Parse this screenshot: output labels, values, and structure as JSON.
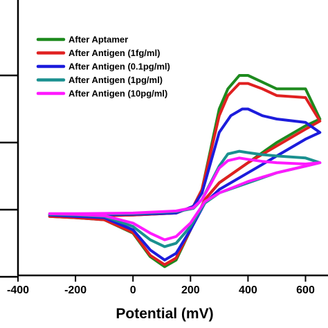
{
  "chart_data": {
    "type": "line",
    "title": "",
    "xlabel": "Potential (mV)",
    "ylabel": "",
    "xlim": [
      -400,
      650
    ],
    "x_ticks": [
      -400,
      -200,
      0,
      200,
      400,
      600
    ],
    "x_tick_labels": [
      "-400",
      "-200",
      "0",
      "200",
      "400",
      "600"
    ],
    "ylim": [
      -0.8,
      3.3
    ],
    "y_ticks": [
      -0.5,
      0.5,
      1.5,
      2.5
    ],
    "legend_position": "top-left",
    "series": [
      {
        "name": "After Aptamer",
        "color": "#1e8a1e",
        "points": [
          [
            -290,
            0.4
          ],
          [
            -200,
            0.38
          ],
          [
            -100,
            0.35
          ],
          [
            0,
            0.15
          ],
          [
            60,
            -0.2
          ],
          [
            110,
            -0.35
          ],
          [
            150,
            -0.25
          ],
          [
            200,
            0.2
          ],
          [
            250,
            0.65
          ],
          [
            300,
            0.9
          ],
          [
            400,
            1.2
          ],
          [
            500,
            1.5
          ],
          [
            600,
            1.75
          ],
          [
            650,
            1.85
          ],
          [
            650,
            1.85
          ],
          [
            600,
            2.3
          ],
          [
            500,
            2.3
          ],
          [
            450,
            2.4
          ],
          [
            400,
            2.5
          ],
          [
            370,
            2.5
          ],
          [
            330,
            2.3
          ],
          [
            300,
            2.0
          ],
          [
            270,
            1.4
          ],
          [
            240,
            0.8
          ],
          [
            210,
            0.55
          ],
          [
            150,
            0.45
          ],
          [
            0,
            0.42
          ],
          [
            -200,
            0.4
          ],
          [
            -290,
            0.4
          ]
        ]
      },
      {
        "name": "After Antigen (1fg/ml)",
        "color": "#e02020",
        "points": [
          [
            -290,
            0.4
          ],
          [
            -200,
            0.38
          ],
          [
            -100,
            0.35
          ],
          [
            0,
            0.16
          ],
          [
            60,
            -0.18
          ],
          [
            110,
            -0.32
          ],
          [
            150,
            -0.22
          ],
          [
            200,
            0.2
          ],
          [
            250,
            0.65
          ],
          [
            300,
            0.9
          ],
          [
            400,
            1.2
          ],
          [
            500,
            1.45
          ],
          [
            600,
            1.7
          ],
          [
            650,
            1.82
          ],
          [
            650,
            1.82
          ],
          [
            600,
            2.17
          ],
          [
            500,
            2.2
          ],
          [
            450,
            2.3
          ],
          [
            400,
            2.38
          ],
          [
            370,
            2.38
          ],
          [
            330,
            2.2
          ],
          [
            300,
            1.9
          ],
          [
            270,
            1.35
          ],
          [
            240,
            0.8
          ],
          [
            210,
            0.55
          ],
          [
            150,
            0.45
          ],
          [
            0,
            0.42
          ],
          [
            -200,
            0.4
          ],
          [
            -290,
            0.4
          ]
        ]
      },
      {
        "name": "After Antigen (0.1pg/ml)",
        "color": "#1c1cdc",
        "points": [
          [
            -290,
            0.42
          ],
          [
            -200,
            0.4
          ],
          [
            -100,
            0.38
          ],
          [
            0,
            0.2
          ],
          [
            60,
            -0.1
          ],
          [
            110,
            -0.25
          ],
          [
            150,
            -0.15
          ],
          [
            200,
            0.2
          ],
          [
            250,
            0.6
          ],
          [
            300,
            0.8
          ],
          [
            400,
            1.05
          ],
          [
            500,
            1.3
          ],
          [
            600,
            1.55
          ],
          [
            650,
            1.65
          ],
          [
            650,
            1.65
          ],
          [
            600,
            1.8
          ],
          [
            500,
            1.85
          ],
          [
            450,
            1.9
          ],
          [
            400,
            2.0
          ],
          [
            380,
            2.0
          ],
          [
            340,
            1.9
          ],
          [
            300,
            1.65
          ],
          [
            270,
            1.2
          ],
          [
            240,
            0.75
          ],
          [
            210,
            0.55
          ],
          [
            150,
            0.45
          ],
          [
            0,
            0.43
          ],
          [
            -200,
            0.42
          ],
          [
            -290,
            0.42
          ]
        ]
      },
      {
        "name": "After Antigen (1pg/ml)",
        "color": "#1a9090",
        "points": [
          [
            -290,
            0.43
          ],
          [
            -200,
            0.42
          ],
          [
            -100,
            0.4
          ],
          [
            0,
            0.25
          ],
          [
            60,
            0.05
          ],
          [
            110,
            -0.05
          ],
          [
            150,
            0.0
          ],
          [
            200,
            0.25
          ],
          [
            250,
            0.6
          ],
          [
            300,
            0.75
          ],
          [
            400,
            0.9
          ],
          [
            500,
            1.05
          ],
          [
            600,
            1.15
          ],
          [
            650,
            1.2
          ],
          [
            650,
            1.2
          ],
          [
            600,
            1.27
          ],
          [
            500,
            1.3
          ],
          [
            450,
            1.32
          ],
          [
            400,
            1.35
          ],
          [
            370,
            1.37
          ],
          [
            330,
            1.33
          ],
          [
            300,
            1.15
          ],
          [
            270,
            0.9
          ],
          [
            240,
            0.65
          ],
          [
            210,
            0.52
          ],
          [
            150,
            0.47
          ],
          [
            0,
            0.44
          ],
          [
            -200,
            0.43
          ],
          [
            -290,
            0.43
          ]
        ]
      },
      {
        "name": "After Antigen (10pg/ml)",
        "color": "#ff1aff",
        "points": [
          [
            -290,
            0.44
          ],
          [
            -200,
            0.43
          ],
          [
            -100,
            0.41
          ],
          [
            0,
            0.3
          ],
          [
            60,
            0.15
          ],
          [
            110,
            0.05
          ],
          [
            150,
            0.1
          ],
          [
            200,
            0.3
          ],
          [
            250,
            0.62
          ],
          [
            300,
            0.75
          ],
          [
            400,
            0.92
          ],
          [
            500,
            1.05
          ],
          [
            600,
            1.15
          ],
          [
            650,
            1.2
          ],
          [
            650,
            1.2
          ],
          [
            600,
            1.18
          ],
          [
            500,
            1.2
          ],
          [
            450,
            1.22
          ],
          [
            400,
            1.25
          ],
          [
            370,
            1.27
          ],
          [
            330,
            1.23
          ],
          [
            300,
            1.12
          ],
          [
            270,
            0.88
          ],
          [
            240,
            0.65
          ],
          [
            210,
            0.53
          ],
          [
            150,
            0.48
          ],
          [
            0,
            0.45
          ],
          [
            -200,
            0.44
          ],
          [
            -290,
            0.44
          ]
        ]
      }
    ]
  }
}
